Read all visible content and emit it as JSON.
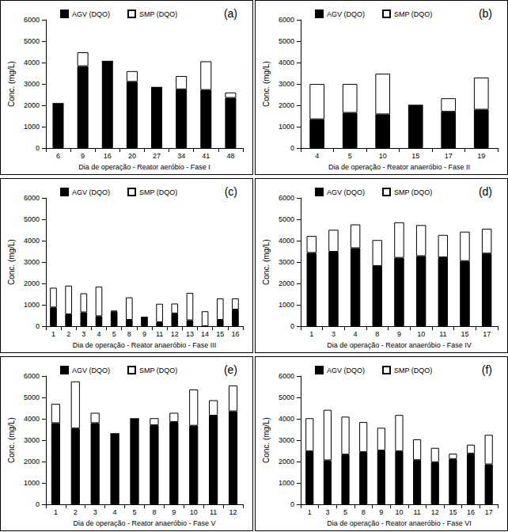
{
  "chart_data": [
    {
      "type": "bar",
      "stacked": true,
      "grid": false,
      "legend": "top",
      "title": "(a)",
      "xlabel": "Dia de operação - Reator aeróbio - Fase I",
      "ylabel": "Conc. (mg/L)",
      "categories": [
        "6",
        "9",
        "16",
        "20",
        "27",
        "34",
        "41",
        "48"
      ],
      "series": [
        {
          "name": "AGV (DQO)",
          "color": "#000000",
          "values": [
            2080,
            3830,
            4060,
            3100,
            2840,
            2750,
            2720,
            2350
          ]
        },
        {
          "name": "SMP (DQO)",
          "color": "#ffffff",
          "values": [
            0,
            650,
            0,
            500,
            0,
            620,
            1340,
            250
          ]
        }
      ],
      "ylim": [
        0,
        6000
      ],
      "yticks": [
        0,
        1000,
        2000,
        3000,
        4000,
        5000,
        6000
      ]
    },
    {
      "type": "bar",
      "stacked": true,
      "grid": false,
      "legend": "top",
      "title": "(b)",
      "xlabel": "Dia de operação - Reator anaeróbio - Fase II",
      "ylabel": "Conc. (mg/L)",
      "categories": [
        "4",
        "5",
        "10",
        "15",
        "17",
        "19"
      ],
      "series": [
        {
          "name": "AGV (DQO)",
          "color": "#000000",
          "values": [
            1350,
            1650,
            1580,
            2000,
            1700,
            1800
          ]
        },
        {
          "name": "SMP (DQO)",
          "color": "#ffffff",
          "values": [
            1650,
            1350,
            1900,
            0,
            630,
            1500
          ]
        }
      ],
      "ylim": [
        0,
        6000
      ],
      "yticks": [
        0,
        1000,
        2000,
        3000,
        4000,
        5000,
        6000
      ]
    },
    {
      "type": "bar",
      "stacked": true,
      "grid": false,
      "legend": "top",
      "title": "(c)",
      "xlabel": "Dia de operação - Reator anaeróbio - Fase III",
      "ylabel": "Conc. (mg/L)",
      "categories": [
        "1",
        "2",
        "3",
        "4",
        "5",
        "8",
        "9",
        "11",
        "12",
        "13",
        "14",
        "15",
        "16"
      ],
      "series": [
        {
          "name": "AGV (DQO)",
          "color": "#000000",
          "values": [
            880,
            560,
            650,
            470,
            680,
            300,
            420,
            190,
            600,
            280,
            0,
            300,
            780
          ]
        },
        {
          "name": "SMP (DQO)",
          "color": "#ffffff",
          "values": [
            920,
            1340,
            890,
            1380,
            50,
            1050,
            0,
            860,
            460,
            1280,
            700,
            1000,
            520
          ]
        }
      ],
      "ylim": [
        0,
        6000
      ],
      "yticks": [
        0,
        1000,
        2000,
        3000,
        4000,
        5000,
        6000
      ]
    },
    {
      "type": "bar",
      "stacked": true,
      "grid": false,
      "legend": "top",
      "title": "(d)",
      "xlabel": "Dia de operação - Reator anaeróbio - Fase IV",
      "ylabel": "Conc. (mg/L)",
      "categories": [
        "1",
        "3",
        "4",
        "8",
        "9",
        "10",
        "11",
        "15",
        "17"
      ],
      "series": [
        {
          "name": "AGV (DQO)",
          "color": "#000000",
          "values": [
            3430,
            3480,
            3650,
            2820,
            3200,
            3280,
            3220,
            3050,
            3400
          ]
        },
        {
          "name": "SMP (DQO)",
          "color": "#ffffff",
          "values": [
            790,
            1030,
            1110,
            1210,
            1660,
            1450,
            1050,
            1370,
            1160
          ]
        }
      ],
      "ylim": [
        0,
        6000
      ],
      "yticks": [
        0,
        1000,
        2000,
        3000,
        4000,
        5000,
        6000
      ]
    },
    {
      "type": "bar",
      "stacked": true,
      "grid": false,
      "legend": "top",
      "title": "(e)",
      "xlabel": "Dia de operação - Reator anaeróbio - Fase V",
      "ylabel": "Conc. (mg/L)",
      "categories": [
        "1",
        "2",
        "3",
        "4",
        "5",
        "8",
        "9",
        "10",
        "11",
        "12"
      ],
      "series": [
        {
          "name": "AGV (DQO)",
          "color": "#000000",
          "values": [
            3800,
            3550,
            3800,
            3300,
            4000,
            3700,
            3850,
            3680,
            4150,
            4350
          ]
        },
        {
          "name": "SMP (DQO)",
          "color": "#ffffff",
          "values": [
            900,
            2200,
            480,
            0,
            0,
            330,
            430,
            1690,
            720,
            1210
          ]
        }
      ],
      "ylim": [
        0,
        6000
      ],
      "yticks": [
        0,
        1000,
        2000,
        3000,
        4000,
        5000,
        6000
      ]
    },
    {
      "type": "bar",
      "stacked": true,
      "grid": false,
      "legend": "top",
      "title": "(f)",
      "xlabel": "Dia de operação - Reator anaeróbio - Fase VI",
      "ylabel": "Conc. (mg/L)",
      "categories": [
        "1",
        "3",
        "5",
        "8",
        "9",
        "10",
        "11",
        "12",
        "15",
        "16",
        "17"
      ],
      "series": [
        {
          "name": "AGV (DQO)",
          "color": "#000000",
          "values": [
            2480,
            2060,
            2330,
            2450,
            2520,
            2480,
            2070,
            1970,
            2120,
            2380,
            1870
          ]
        },
        {
          "name": "SMP (DQO)",
          "color": "#ffffff",
          "values": [
            1550,
            2360,
            1770,
            1400,
            1060,
            1700,
            970,
            670,
            250,
            410,
            1380
          ]
        }
      ],
      "ylim": [
        0,
        6000
      ],
      "yticks": [
        0,
        1000,
        2000,
        3000,
        4000,
        5000,
        6000
      ]
    }
  ]
}
